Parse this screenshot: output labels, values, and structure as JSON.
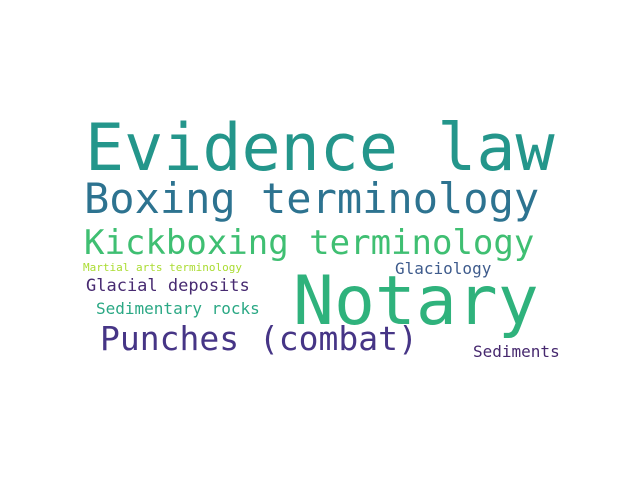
{
  "words": [
    {
      "text": "Evidence law",
      "color": "#24968b"
    },
    {
      "text": "Boxing terminology",
      "color": "#2d7390"
    },
    {
      "text": "Kickboxing terminology",
      "color": "#3fbf72"
    },
    {
      "text": "Martial arts terminology",
      "color": "#aadc32"
    },
    {
      "text": "Glaciology",
      "color": "#3e5b8c"
    },
    {
      "text": "Notary",
      "color": "#2fb27c"
    },
    {
      "text": "Glacial deposits",
      "color": "#472a71"
    },
    {
      "text": "Sedimentary rocks",
      "color": "#2aa884"
    },
    {
      "text": "Punches (combat)",
      "color": "#463586"
    },
    {
      "text": "Sediments",
      "color": "#46286e"
    }
  ]
}
